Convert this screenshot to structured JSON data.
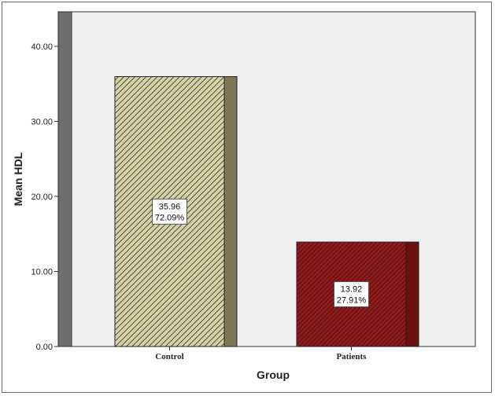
{
  "chart_data": {
    "type": "bar",
    "xlabel": "Group",
    "ylabel": "Mean HDL",
    "categories": [
      "Control",
      "Patients"
    ],
    "values": [
      35.96,
      13.92
    ],
    "value_labels": [
      "35.96",
      "13.92"
    ],
    "percent_labels": [
      "72.09%",
      "27.91%"
    ],
    "ylim": [
      0,
      40
    ],
    "yticks": [
      "0.00",
      "10.00",
      "20.00",
      "30.00",
      "40.00"
    ],
    "ytick_values": [
      0,
      10,
      20,
      30,
      40
    ],
    "style": "3d-bar-hatched",
    "colors": {
      "plot_bg": "#efefef",
      "wall": "#6e6e6e",
      "control_face": "#d7d1a4",
      "control_side": "#7c7756",
      "patients_face": "#8f1b1b",
      "patients_side": "#6a1010",
      "hatch_dark": "#2b2b2b"
    },
    "grid": false
  }
}
